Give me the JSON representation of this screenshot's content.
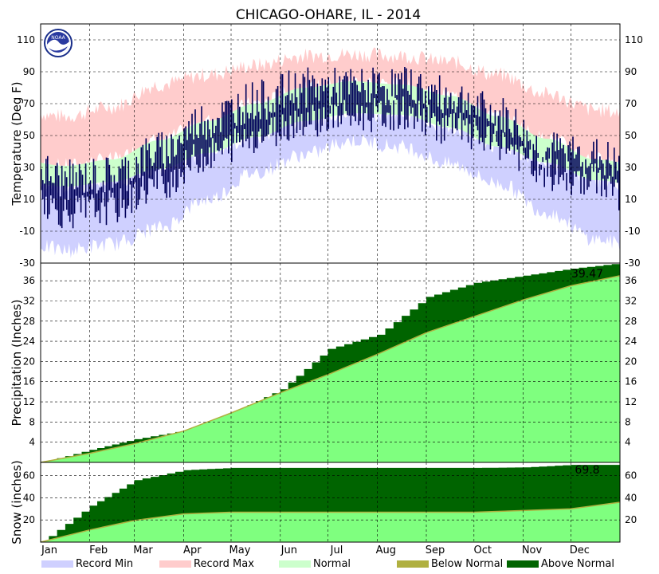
{
  "title": "CHICAGO-OHARE, IL - 2014",
  "colors": {
    "record_min": "#cfd0ff",
    "record_max": "#ffcccc",
    "normal": "#ccffcc",
    "observed_temp": "#00005a",
    "normal_precip": "#7fff7f",
    "below_normal": "#b0b040",
    "above_normal": "#006400"
  },
  "months": [
    "Jan",
    "Feb",
    "Mar",
    "Apr",
    "May",
    "Jun",
    "Jul",
    "Aug",
    "Sep",
    "Oct",
    "Nov",
    "Dec"
  ],
  "legend": [
    {
      "label": "Record Min",
      "color": "#cfd0ff"
    },
    {
      "label": "Record Max",
      "color": "#ffcccc"
    },
    {
      "label": "Normal",
      "color": "#ccffcc"
    },
    {
      "label": "Below Normal",
      "color": "#b0b040"
    },
    {
      "label": "Above Normal",
      "color": "#006400"
    }
  ],
  "logo": "noaa-logo",
  "chart_data": [
    {
      "type": "area",
      "panel": "temperature",
      "ylabel": "Temperature (Deg F)",
      "ylim": [
        -30,
        120
      ],
      "yticks": [
        110,
        90,
        70,
        50,
        30,
        10,
        -10,
        -30
      ],
      "grid": true,
      "normal_high_by_month": [
        31,
        35,
        47,
        59,
        70,
        80,
        84,
        82,
        75,
        62,
        48,
        35
      ],
      "normal_low_by_month": [
        18,
        21,
        29,
        39,
        49,
        59,
        64,
        63,
        55,
        43,
        33,
        22
      ],
      "record_high_by_month": [
        62,
        68,
        82,
        88,
        94,
        100,
        101,
        100,
        96,
        88,
        76,
        66
      ],
      "record_low_by_month": [
        -22,
        -18,
        -8,
        10,
        27,
        38,
        47,
        43,
        32,
        20,
        2,
        -15
      ],
      "observed_high_by_month": [
        22,
        25,
        40,
        60,
        72,
        80,
        80,
        81,
        74,
        62,
        40,
        36
      ],
      "observed_low_by_month": [
        2,
        5,
        20,
        38,
        50,
        60,
        62,
        64,
        55,
        45,
        25,
        22
      ]
    },
    {
      "type": "area",
      "panel": "precipitation",
      "ylabel": "Precipitation (Inches)",
      "ylim": [
        0,
        39.5
      ],
      "yticks": [
        36,
        32,
        28,
        24,
        20,
        16,
        12,
        8,
        4
      ],
      "grid": true,
      "x": [
        "Jan 1",
        "Feb 1",
        "Mar 1",
        "Apr 1",
        "May 1",
        "Jun 1",
        "Jul 1",
        "Aug 1",
        "Sep 1",
        "Oct 1",
        "Nov 1",
        "Dec 1",
        "Dec 31"
      ],
      "observed_cumulative": [
        0,
        2.5,
        4.6,
        6.3,
        9.8,
        14.5,
        22.5,
        25.3,
        32.8,
        35.6,
        37.0,
        38.4,
        39.47
      ],
      "normal_cumulative": [
        0,
        1.8,
        3.7,
        6.2,
        9.8,
        13.8,
        17.4,
        21.4,
        25.7,
        28.9,
        32.2,
        35.0,
        37.0
      ],
      "annotation": "39.47"
    },
    {
      "type": "area",
      "panel": "snow",
      "ylabel": "Snow (inches)",
      "ylim": [
        0,
        72
      ],
      "yticks": [
        60,
        40,
        20
      ],
      "grid": true,
      "x": [
        "Jan 1",
        "Feb 1",
        "Mar 1",
        "Apr 1",
        "May 1",
        "Jun 1",
        "Jul 1",
        "Aug 1",
        "Sep 1",
        "Oct 1",
        "Nov 1",
        "Dec 1",
        "Dec 31"
      ],
      "observed_cumulative": [
        0,
        33.0,
        56.0,
        65.0,
        67.0,
        67.0,
        67.0,
        67.0,
        67.0,
        67.0,
        67.5,
        69.8,
        69.8
      ],
      "normal_cumulative": [
        0,
        11.0,
        19.5,
        25.5,
        27.0,
        27.0,
        27.0,
        27.0,
        27.0,
        27.0,
        28.5,
        30.0,
        36.0
      ],
      "annotation": "69.8"
    }
  ]
}
